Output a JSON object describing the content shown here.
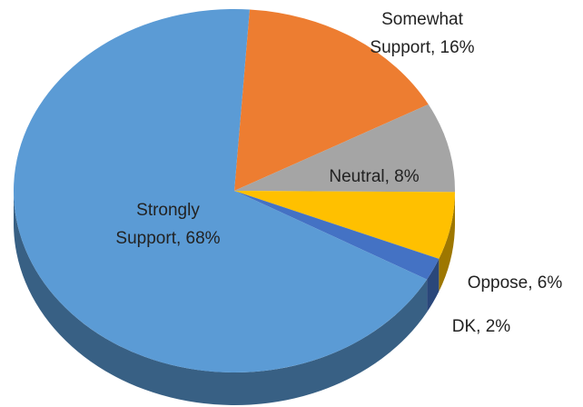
{
  "chart_data": {
    "type": "pie",
    "labels": [
      [
        "Somewhat",
        "Support, 16%"
      ],
      [
        "Neutral, 8%"
      ],
      [
        "Oppose, 6%"
      ],
      [
        "DK, 2%"
      ],
      [
        "Strongly",
        "Support, 68%"
      ]
    ],
    "values": [
      16,
      8,
      6,
      2,
      68
    ],
    "colors": [
      "#ed7d31",
      "#a5a5a5",
      "#ffc000",
      "#4472c4",
      "#5b9bd5"
    ]
  }
}
